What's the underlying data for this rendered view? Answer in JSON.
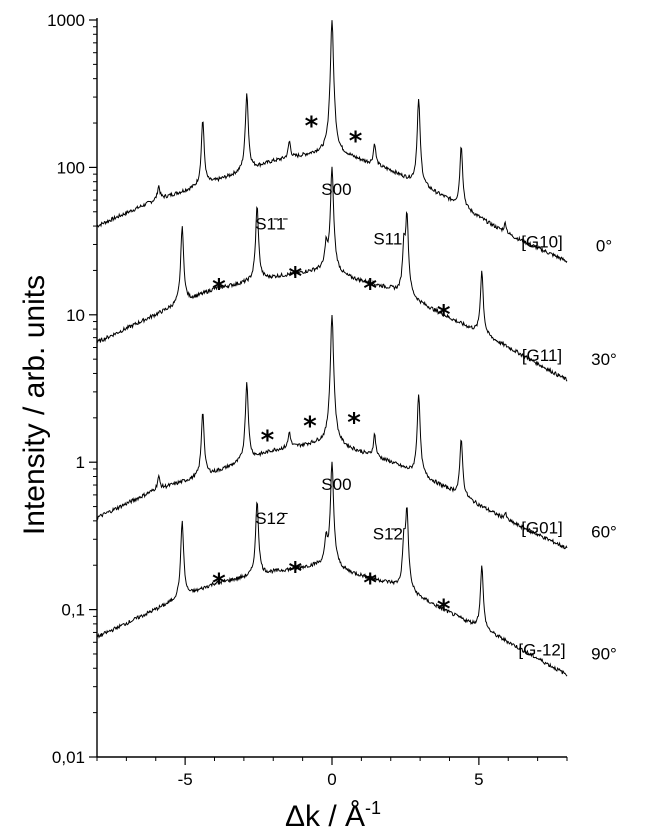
{
  "chart_data": {
    "type": "line",
    "xlabel": "Δk / Å",
    "xlabel_superscript": "-1",
    "ylabel": "Intensity / arb. units",
    "xlim": [
      -8,
      8
    ],
    "ylim": [
      0.01,
      1000
    ],
    "yscale": "log",
    "grid": false,
    "x_ticks": [
      -5,
      0,
      5
    ],
    "x_tick_labels": [
      "-5",
      "0",
      "5"
    ],
    "y_ticks": [
      0.01,
      0.1,
      1,
      10,
      100,
      1000
    ],
    "y_tick_labels": [
      "0,01",
      "0,1",
      "1",
      "10",
      "100",
      "1000"
    ],
    "series": [
      {
        "name": "[G10]",
        "angle": "0°",
        "x_range": [
          -8,
          8
        ],
        "baseline_points": [
          [
            -8,
            40
          ],
          [
            -6,
            60
          ],
          [
            -4,
            80
          ],
          [
            -2,
            110
          ],
          [
            -0.5,
            125
          ],
          [
            0,
            125
          ],
          [
            0.5,
            120
          ],
          [
            2,
            95
          ],
          [
            4,
            60
          ],
          [
            6,
            35
          ],
          [
            8,
            23
          ]
        ],
        "peaks": [
          {
            "x": -5.9,
            "y": 75
          },
          {
            "x": -4.4,
            "y": 210
          },
          {
            "x": -2.9,
            "y": 320
          },
          {
            "x": -1.45,
            "y": 150
          },
          {
            "x": 0,
            "y": 1000
          },
          {
            "x": 1.45,
            "y": 145
          },
          {
            "x": 2.95,
            "y": 290
          },
          {
            "x": 4.4,
            "y": 140
          },
          {
            "x": 5.9,
            "y": 42
          }
        ],
        "markers": [
          {
            "x": -0.7,
            "y": 190,
            "text": "*"
          },
          {
            "x": 0.8,
            "y": 150,
            "text": "*"
          }
        ]
      },
      {
        "name": "[G11]",
        "angle": "30°",
        "x_range": [
          -8,
          8
        ],
        "baseline_points": [
          [
            -8,
            6.5
          ],
          [
            -6,
            10
          ],
          [
            -4,
            15
          ],
          [
            -2,
            18
          ],
          [
            -0.5,
            20
          ],
          [
            0,
            20
          ],
          [
            0.5,
            18
          ],
          [
            2,
            15
          ],
          [
            4,
            9.5
          ],
          [
            6,
            6
          ],
          [
            8,
            3.6
          ]
        ],
        "peaks": [
          {
            "x": -5.1,
            "y": 40
          },
          {
            "x": -2.55,
            "y": 55
          },
          {
            "x": -0.2,
            "y": 30
          },
          {
            "x": 0,
            "y": 100
          },
          {
            "x": 2.45,
            "y": 30
          },
          {
            "x": 2.55,
            "y": 48
          },
          {
            "x": 5.1,
            "y": 20
          }
        ],
        "markers": [
          {
            "x": -3.85,
            "y": 15,
            "text": "*"
          },
          {
            "x": -1.25,
            "y": 18,
            "text": "*"
          },
          {
            "x": 1.3,
            "y": 15,
            "text": "*"
          },
          {
            "x": 3.8,
            "y": 10,
            "text": "*"
          }
        ],
        "labels": [
          {
            "x": -2.1,
            "y": 38,
            "text": "S1̄1̄"
          },
          {
            "x": 0.15,
            "y": 65,
            "text": "S00"
          },
          {
            "x": 1.9,
            "y": 30,
            "text": "S11"
          }
        ]
      },
      {
        "name": "[G01]",
        "angle": "60°",
        "x_range": [
          -8,
          8
        ],
        "baseline_points": [
          [
            -8,
            0.42
          ],
          [
            -6,
            0.65
          ],
          [
            -4,
            0.85
          ],
          [
            -2,
            1.2
          ],
          [
            -0.5,
            1.35
          ],
          [
            0,
            1.35
          ],
          [
            0.5,
            1.25
          ],
          [
            2,
            1.0
          ],
          [
            4,
            0.65
          ],
          [
            6,
            0.4
          ],
          [
            8,
            0.26
          ]
        ],
        "peaks": [
          {
            "x": -5.9,
            "y": 0.8
          },
          {
            "x": -4.4,
            "y": 2.2
          },
          {
            "x": -2.9,
            "y": 3.5
          },
          {
            "x": -1.45,
            "y": 1.6
          },
          {
            "x": 0,
            "y": 10
          },
          {
            "x": 1.45,
            "y": 1.55
          },
          {
            "x": 2.95,
            "y": 2.9
          },
          {
            "x": 4.4,
            "y": 1.45
          },
          {
            "x": 5.9,
            "y": 0.45
          }
        ],
        "markers": [
          {
            "x": -2.2,
            "y": 1.4,
            "text": "*"
          },
          {
            "x": -0.75,
            "y": 1.75,
            "text": "*"
          },
          {
            "x": 0.75,
            "y": 1.85,
            "text": "*"
          }
        ]
      },
      {
        "name": "[G-12]",
        "angle": "90°",
        "x_range": [
          -8,
          8
        ],
        "baseline_points": [
          [
            -8,
            0.065
          ],
          [
            -6,
            0.1
          ],
          [
            -4,
            0.15
          ],
          [
            -2,
            0.18
          ],
          [
            -0.5,
            0.2
          ],
          [
            0,
            0.2
          ],
          [
            0.5,
            0.18
          ],
          [
            2,
            0.15
          ],
          [
            4,
            0.095
          ],
          [
            6,
            0.06
          ],
          [
            8,
            0.036
          ]
        ],
        "peaks": [
          {
            "x": -5.1,
            "y": 0.4
          },
          {
            "x": -2.55,
            "y": 0.55
          },
          {
            "x": -0.2,
            "y": 0.3
          },
          {
            "x": 0,
            "y": 1.0
          },
          {
            "x": 2.45,
            "y": 0.3
          },
          {
            "x": 2.55,
            "y": 0.48
          },
          {
            "x": 5.1,
            "y": 0.2
          }
        ],
        "markers": [
          {
            "x": -3.85,
            "y": 0.15,
            "text": "*"
          },
          {
            "x": -1.25,
            "y": 0.18,
            "text": "*"
          },
          {
            "x": 1.3,
            "y": 0.15,
            "text": "*"
          },
          {
            "x": 3.8,
            "y": 0.1,
            "text": "*"
          }
        ],
        "labels": [
          {
            "x": -2.1,
            "y": 0.38,
            "text": "S12̄"
          },
          {
            "x": 0.15,
            "y": 0.65,
            "text": "S00"
          },
          {
            "x": 1.9,
            "y": 0.3,
            "text": "S1̄2"
          }
        ]
      }
    ]
  }
}
